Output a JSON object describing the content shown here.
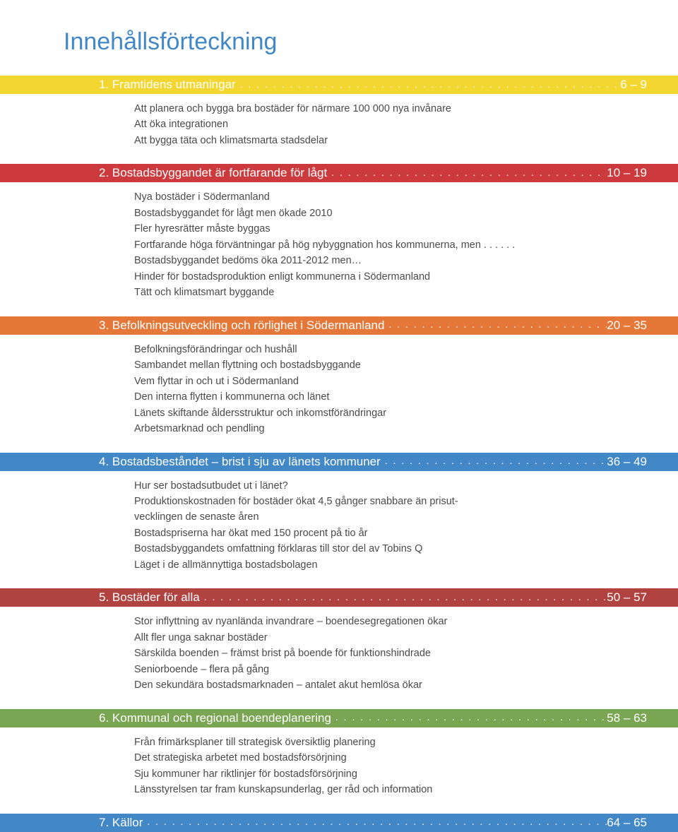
{
  "doc_title": "Innehållsförteckning",
  "sections": [
    {
      "num": "1",
      "title": "Framtidens utmaningar",
      "pages": "6 – 9",
      "band_color": "#f3d630",
      "text_color": "#ffffff",
      "items": [
        "Att planera och bygga bra bostäder för närmare 100 000 nya invånare",
        "Att öka integrationen",
        "Att bygga täta och klimatsmarta stadsdelar"
      ]
    },
    {
      "num": "2",
      "title": "Bostadsbyggandet är fortfarande för lågt",
      "pages": "10 – 19",
      "band_color": "#cc3a3d",
      "text_color": "#ffffff",
      "items": [
        "Nya bostäder i Södermanland",
        "Bostadsbyggandet för lågt men ökade 2010",
        "Fler hyresrätter måste byggas",
        "Fortfarande höga förväntningar på hög nybyggnation hos kommunerna, men . . . . . .",
        "Bostadsbyggandet bedöms öka 2011-2012 men…",
        "Hinder för bostadsproduktion enligt kommunerna i Södermanland",
        "Tätt och klimatsmart byggande"
      ]
    },
    {
      "num": "3",
      "title": "Befolkningsutveckling och rörlighet i Södermanland",
      "pages": "20 – 35",
      "band_color": "#e57838",
      "text_color": "#ffffff",
      "items": [
        "Befolkningsförändringar och hushåll",
        "Sambandet mellan flyttning och bostadsbyggande",
        "Vem flyttar in och ut i Södermanland",
        "Den interna flytten i kommunerna och länet",
        "Länets skiftande åldersstruktur och inkomstförändringar",
        "Arbetsmarknad och pendling"
      ]
    },
    {
      "num": "4",
      "title": "Bostadsbeståndet – brist i sju av länets kommuner",
      "pages": "36 – 49",
      "band_color": "#4287c6",
      "text_color": "#ffffff",
      "items": [
        "Hur ser bostadsutbudet ut i länet?",
        "Produktionskostnaden för bostäder ökat 4,5 gånger snabbare än prisut-",
        "vecklingen de senaste åren",
        "Bostadspriserna har ökat med 150 procent på tio år",
        "Bostadsbyggandets omfattning förklaras till stor del av Tobins Q",
        "Läget i de allmännyttiga bostadsbolagen"
      ]
    },
    {
      "num": "5",
      "title": "Bostäder för alla",
      "pages": "50 – 57",
      "band_color": "#b0423f",
      "text_color": "#ffffff",
      "items": [
        "Stor inflyttning av nyanlända invandrare – boendesegregationen ökar",
        "Allt fler unga saknar bostäder",
        "Särskilda boenden – främst brist på boende för funktionshindrade",
        "Seniorboende – flera på gång",
        "Den sekundära bostadsmarknaden – antalet akut hemlösa ökar"
      ]
    },
    {
      "num": "6",
      "title": "Kommunal och regional boendeplanering",
      "pages": "58 – 63",
      "band_color": "#7aa654",
      "text_color": "#ffffff",
      "items": [
        "Från frimärksplaner till strategisk översiktlig planering",
        "Det strategiska arbetet med bostadsförsörjning",
        "Sju kommuner har riktlinjer för bostadsförsörjning",
        "Länsstyrelsen tar fram kunskapsunderlag, ger råd och information"
      ]
    },
    {
      "num": "7",
      "title": "Källor",
      "pages": "64 – 65",
      "band_color": "#4287c6",
      "text_color": "#ffffff",
      "items": []
    }
  ],
  "dots": ". . . . . . . . . . . . . . . . . . . . . . . . . . . . . . . . . . . . . . . . . . . . . . . . . . . . . . . . . . . . . . . . . . . . . . . . . . . . . . . . . . . ."
}
